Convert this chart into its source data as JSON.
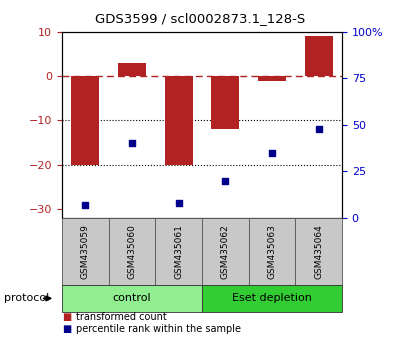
{
  "title": "GDS3599 / scl0002873.1_128-S",
  "samples": [
    "GSM435059",
    "GSM435060",
    "GSM435061",
    "GSM435062",
    "GSM435063",
    "GSM435064"
  ],
  "bar_values": [
    -20,
    3,
    -20,
    -12,
    -1,
    9
  ],
  "dot_values": [
    7,
    40,
    8,
    20,
    35,
    48
  ],
  "ylim_left": [
    -32,
    10
  ],
  "ylim_right": [
    0,
    100
  ],
  "bar_color": "#B22222",
  "dot_color": "#00008B",
  "dotted_lines": [
    -10,
    -20
  ],
  "protocol_groups": [
    {
      "label": "control",
      "start": 0,
      "end": 2,
      "color": "#90EE90"
    },
    {
      "label": "Eset depletion",
      "start": 3,
      "end": 5,
      "color": "#32CD32"
    }
  ],
  "legend_items": [
    {
      "label": "transformed count",
      "color": "#B22222"
    },
    {
      "label": "percentile rank within the sample",
      "color": "#00008B"
    }
  ],
  "protocol_label": "protocol",
  "background_color": "#ffffff",
  "tick_color_left": "#B22222",
  "tick_color_right": "#0000CD",
  "right_axis_ticks": [
    0,
    25,
    50,
    75,
    100
  ],
  "right_axis_labels": [
    "0",
    "25",
    "50",
    "75",
    "100%"
  ],
  "left_axis_ticks": [
    -30,
    -20,
    -10,
    0,
    10
  ],
  "bar_width": 0.6,
  "sample_box_color": "#C8C8C8"
}
